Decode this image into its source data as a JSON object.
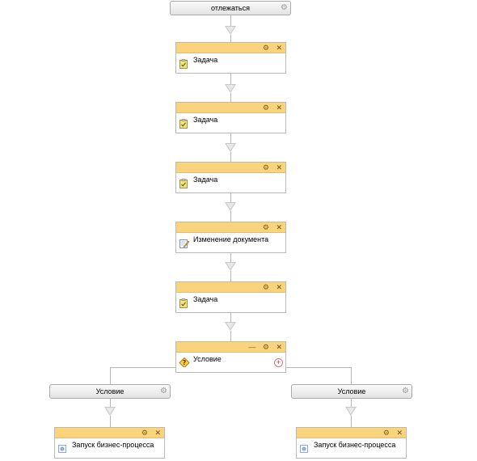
{
  "start": {
    "label": "отлежаться",
    "icon": "gear-icon"
  },
  "activities": [
    {
      "label": "Задача",
      "icon": "task-icon"
    },
    {
      "label": "Задача",
      "icon": "task-icon"
    },
    {
      "label": "Задача",
      "icon": "task-icon"
    },
    {
      "label": "Изменение документа",
      "icon": "edit-document-icon"
    },
    {
      "label": "Задача",
      "icon": "task-icon"
    }
  ],
  "condition": {
    "label": "Условие",
    "icon": "condition-icon",
    "add_symbol": "+"
  },
  "branches": [
    {
      "label": "Условие",
      "subtask": {
        "label": "Запуск бизнес-процесса",
        "icon": "bp-launch-icon"
      }
    },
    {
      "label": "Условие",
      "subtask": {
        "label": "Запуск бизнес-процесса",
        "icon": "bp-launch-icon"
      }
    }
  ],
  "tools": {
    "gear": "⚙",
    "close": "✕",
    "minimize": "—"
  },
  "colors": {
    "card_header": "#fad47d",
    "connector": "#b7b7b7"
  }
}
